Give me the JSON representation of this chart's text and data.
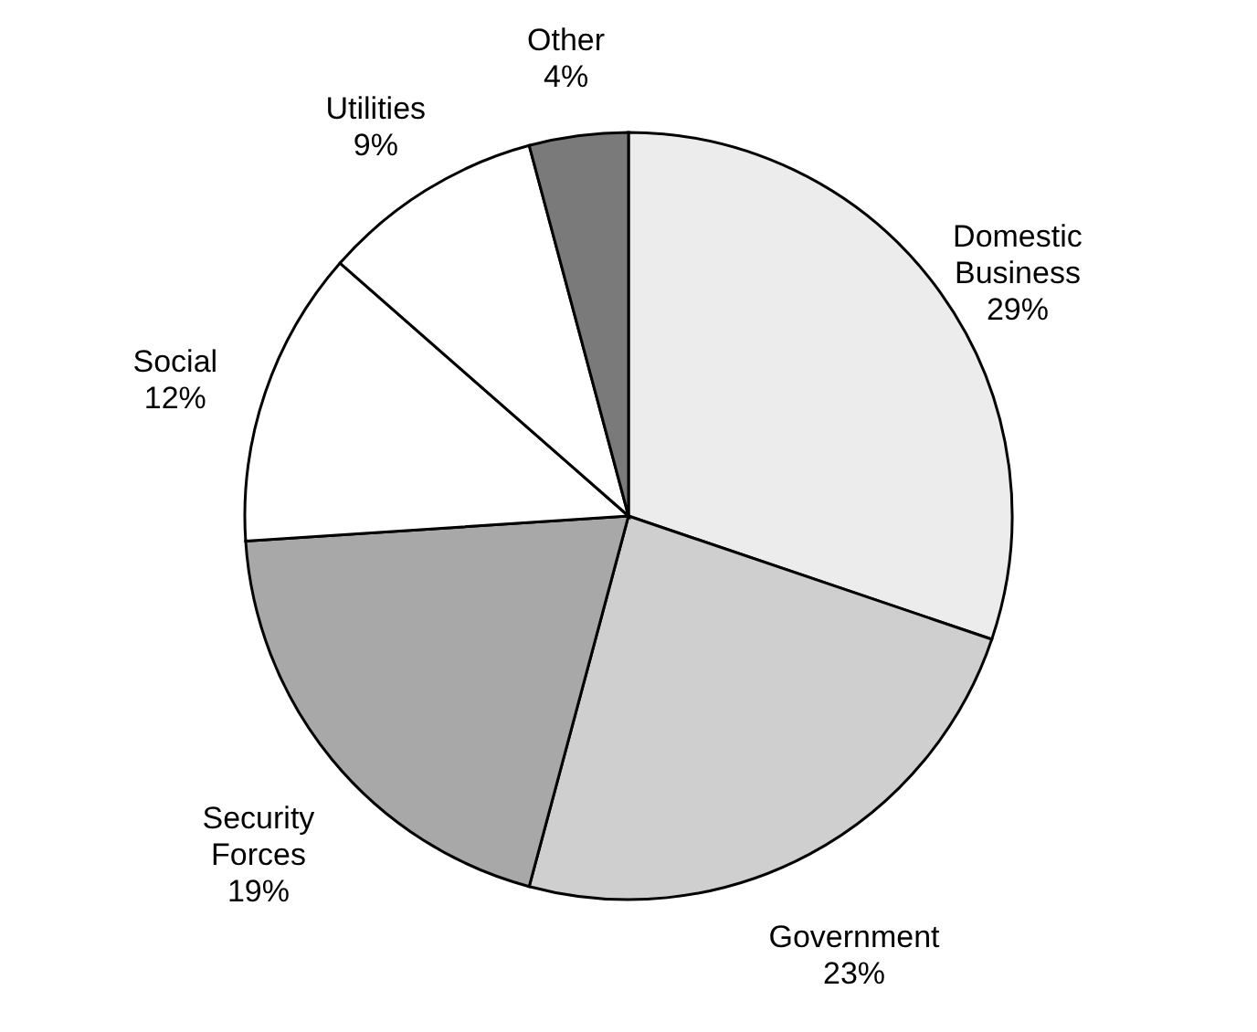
{
  "chart_data": {
    "type": "pie",
    "categories": [
      "Domestic Business",
      "Government",
      "Security Forces",
      "Social",
      "Utilities",
      "Other"
    ],
    "values": [
      29,
      23,
      19,
      12,
      9,
      4
    ],
    "value_labels": [
      "29%",
      "23%",
      "19%",
      "12%",
      "9%",
      "4%"
    ],
    "colors": [
      "#ececec",
      "#cfcfcf",
      "#a8a8a8",
      "#ffffff",
      "#ffffff",
      "#7a7a7a"
    ]
  }
}
